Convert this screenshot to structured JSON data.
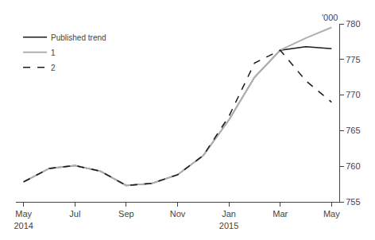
{
  "chart_data": {
    "type": "line",
    "ylabel": "'000",
    "categories": [
      "May\n2014",
      null,
      "Jul",
      null,
      "Sep",
      null,
      "Nov",
      null,
      "Jan\n2015",
      null,
      "Mar",
      null,
      "May"
    ],
    "series": [
      {
        "name": "Published trend",
        "color": "#1a1a1a",
        "line_style": "solid",
        "values": [
          757.8,
          759.7,
          760.1,
          759.3,
          757.3,
          757.6,
          758.8,
          761.5,
          766.5,
          772.5,
          776.3,
          776.8,
          776.5
        ]
      },
      {
        "name": "1",
        "color": "#b0b0b0",
        "line_style": "solid",
        "values": [
          757.8,
          759.7,
          760.1,
          759.3,
          757.3,
          757.6,
          758.8,
          761.5,
          766.5,
          772.5,
          776.3,
          778.0,
          779.5
        ]
      },
      {
        "name": "2",
        "color": "#1a1a1a",
        "line_style": "dashed",
        "values": [
          757.8,
          759.7,
          760.1,
          759.3,
          757.3,
          757.6,
          758.8,
          761.5,
          767.0,
          774.5,
          776.3,
          772.0,
          769.0
        ]
      }
    ],
    "ylim": [
      755,
      780
    ],
    "yticks": [
      755,
      760,
      765,
      770,
      775,
      780
    ],
    "grid": false,
    "legend": "upper left"
  }
}
